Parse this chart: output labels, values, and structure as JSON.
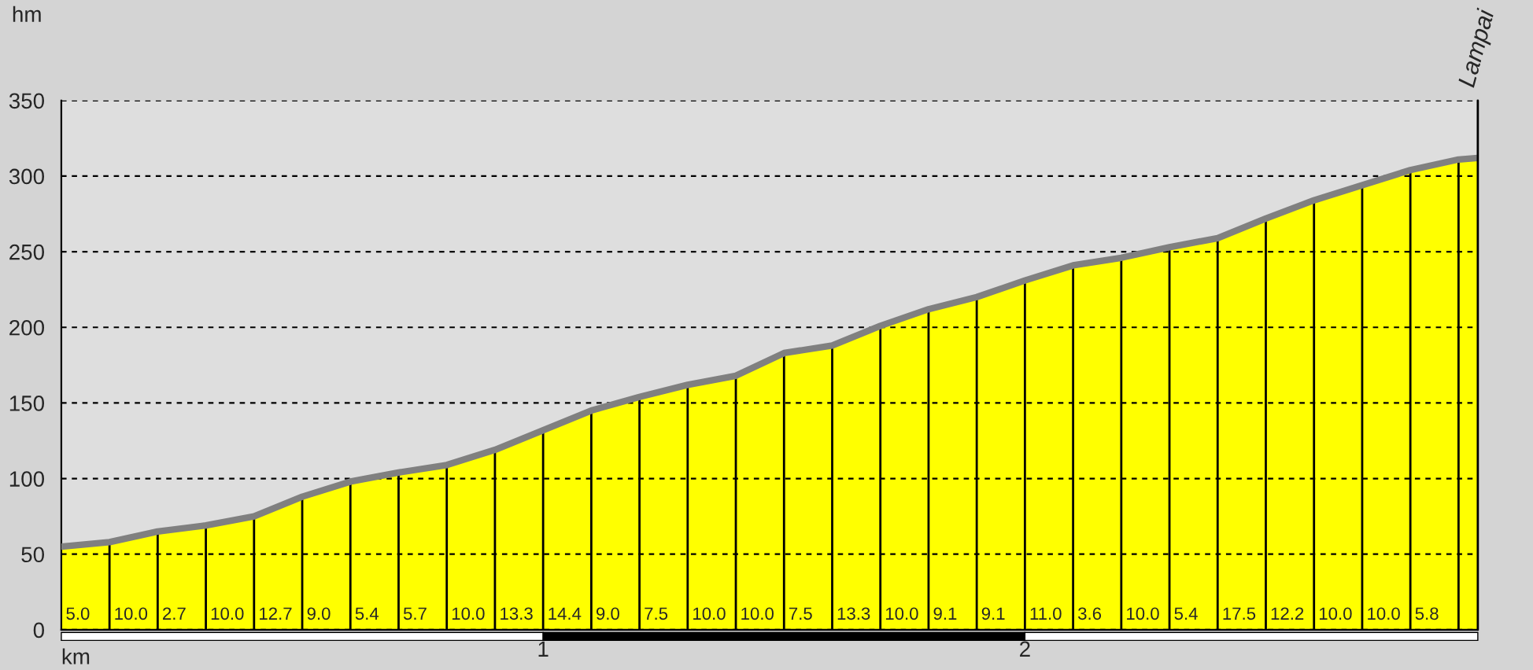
{
  "chart_data": {
    "type": "area",
    "xlabel": "km",
    "ylabel": "hm",
    "x": [
      0,
      0.1,
      0.2,
      0.3,
      0.4,
      0.5,
      0.6,
      0.7,
      0.8,
      0.9,
      1.0,
      1.1,
      1.2,
      1.3,
      1.4,
      1.5,
      1.6,
      1.7,
      1.8,
      1.9,
      2.0,
      2.1,
      2.2,
      2.3,
      2.4,
      2.5,
      2.6,
      2.7,
      2.8,
      2.9,
      2.94
    ],
    "series": [
      {
        "color": "#ffff00",
        "values": [
          55,
          58,
          65,
          69,
          75,
          88,
          98,
          104,
          109,
          119,
          132,
          145,
          154,
          162,
          168,
          183,
          188,
          201,
          212,
          220,
          231,
          241,
          246,
          253,
          259,
          272,
          284,
          294,
          304,
          311,
          312
        ]
      }
    ],
    "xlim": [
      0,
      2.94
    ],
    "xticks": [
      1,
      2
    ],
    "ylim": [
      0,
      350
    ],
    "yticks": [
      0,
      50,
      100,
      150,
      200,
      250,
      300,
      350
    ],
    "grid": "y",
    "legend": false,
    "ref_lines": [
      {
        "axis": "x",
        "value": 2.94,
        "label": "Lampai"
      }
    ],
    "annotations": [
      {
        "text": "5.0",
        "x": 0,
        "y": 0
      },
      {
        "text": "10.0",
        "x": 0.1,
        "y": 0
      },
      {
        "text": "2.7",
        "x": 0.2,
        "y": 0
      },
      {
        "text": "10.0",
        "x": 0.3,
        "y": 0
      },
      {
        "text": "12.7",
        "x": 0.4,
        "y": 0
      },
      {
        "text": "9.0",
        "x": 0.5,
        "y": 0
      },
      {
        "text": "5.4",
        "x": 0.6,
        "y": 0
      },
      {
        "text": "5.7",
        "x": 0.7,
        "y": 0
      },
      {
        "text": "10.0",
        "x": 0.8,
        "y": 0
      },
      {
        "text": "13.3",
        "x": 0.9,
        "y": 0
      },
      {
        "text": "14.4",
        "x": 1.0,
        "y": 0
      },
      {
        "text": "9.0",
        "x": 1.1,
        "y": 0
      },
      {
        "text": "7.5",
        "x": 1.2,
        "y": 0
      },
      {
        "text": "10.0",
        "x": 1.3,
        "y": 0
      },
      {
        "text": "10.0",
        "x": 1.4,
        "y": 0
      },
      {
        "text": "7.5",
        "x": 1.5,
        "y": 0
      },
      {
        "text": "13.3",
        "x": 1.6,
        "y": 0
      },
      {
        "text": "10.0",
        "x": 1.7,
        "y": 0
      },
      {
        "text": "9.1",
        "x": 1.8,
        "y": 0
      },
      {
        "text": "9.1",
        "x": 1.9,
        "y": 0
      },
      {
        "text": "11.0",
        "x": 2.0,
        "y": 0
      },
      {
        "text": "3.6",
        "x": 2.1,
        "y": 0
      },
      {
        "text": "10.0",
        "x": 2.2,
        "y": 0
      },
      {
        "text": "5.4",
        "x": 2.3,
        "y": 0
      },
      {
        "text": "17.5",
        "x": 2.4,
        "y": 0
      },
      {
        "text": "12.2",
        "x": 2.5,
        "y": 0
      },
      {
        "text": "10.0",
        "x": 2.6,
        "y": 0
      },
      {
        "text": "10.0",
        "x": 2.7,
        "y": 0
      },
      {
        "text": "5.8",
        "x": 2.8,
        "y": 0
      }
    ]
  }
}
